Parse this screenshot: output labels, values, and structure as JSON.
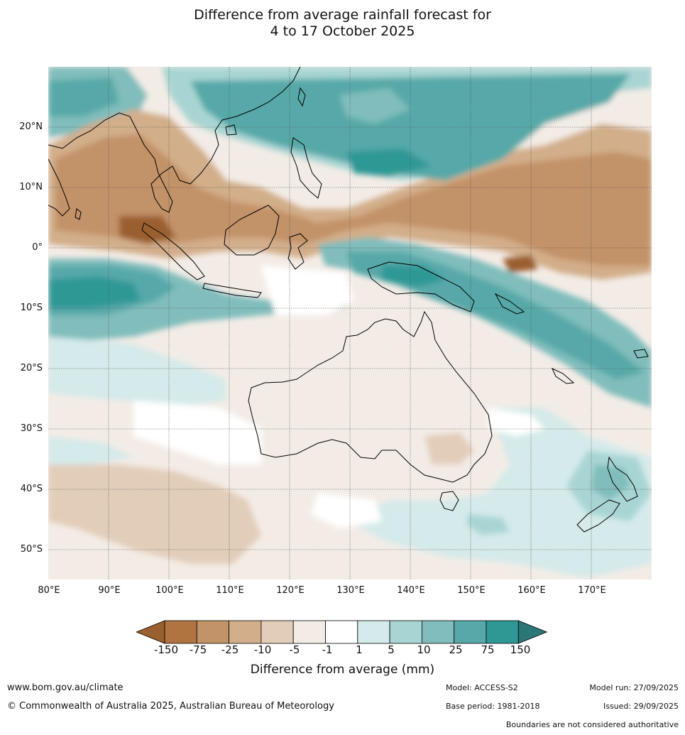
{
  "title": {
    "line1": "Difference from average rainfall forecast for",
    "line2": "4 to 17 October 2025"
  },
  "map": {
    "lat_labels": [
      "20°N",
      "10°N",
      "0°",
      "10°S",
      "20°S",
      "30°S",
      "40°S",
      "50°S"
    ],
    "lon_labels": [
      "80°E",
      "90°E",
      "100°E",
      "110°E",
      "120°E",
      "130°E",
      "140°E",
      "150°E",
      "160°E",
      "170°E"
    ],
    "extent": {
      "lon_min": 80,
      "lon_max": 180,
      "lat_min": -55,
      "lat_max": 30
    }
  },
  "colorbar": {
    "ticks": [
      "-150",
      "-75",
      "-25",
      "-10",
      "-5",
      "-1",
      "1",
      "5",
      "10",
      "25",
      "75",
      "150"
    ],
    "colors": [
      "#9a5f2e",
      "#b07440",
      "#c29268",
      "#d2ae8a",
      "#e2cdb9",
      "#f3ece6",
      "#ffffff",
      "#d5eaea",
      "#a8d5d3",
      "#80bdbc",
      "#56a9a8",
      "#2f9895",
      "#2a7776"
    ],
    "label": "Difference from average (mm)"
  },
  "footer": {
    "website": "www.bom.gov.au/climate",
    "copyright": "© Commonwealth of Australia 2025, Australian Bureau of Meteorology",
    "model": "Model: ACCESS-S2",
    "base_period": "Base period: 1981-2018",
    "model_run": "Model run: 27/09/2025",
    "issued": "Issued: 29/09/2025",
    "disclaimer": "Boundaries are not considered authoritative"
  }
}
